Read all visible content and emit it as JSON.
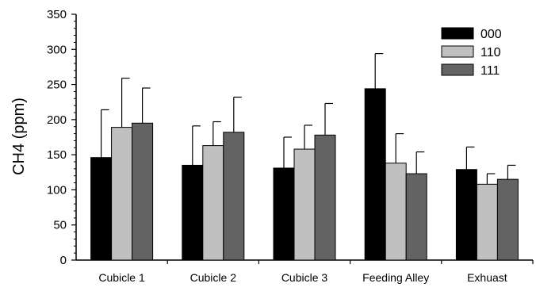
{
  "chart_data": {
    "type": "bar",
    "title": "",
    "xlabel": "",
    "ylabel": "CH4 (ppm)",
    "ylim": [
      0,
      350
    ],
    "yticks": [
      "0",
      "50",
      "100",
      "150",
      "200",
      "250",
      "300",
      "350"
    ],
    "grid": false,
    "legend_position": "top-right",
    "error_bars": "upper",
    "categories": [
      "Cubicle 1",
      "Cubicle 2",
      "Cubicle 3",
      "Feeding Alley",
      "Exhuast"
    ],
    "series": [
      {
        "name": "000",
        "color": "#000000",
        "values": [
          146,
          135,
          131,
          244,
          129
        ],
        "error": [
          68,
          56,
          44,
          50,
          32
        ]
      },
      {
        "name": "110",
        "color": "#c0c0c0",
        "values": [
          189,
          163,
          158,
          138,
          108
        ],
        "error": [
          70,
          34,
          34,
          42,
          15
        ]
      },
      {
        "name": "111",
        "color": "#636363",
        "values": [
          195,
          182,
          178,
          123,
          115
        ],
        "error": [
          50,
          50,
          45,
          31,
          20
        ]
      }
    ]
  }
}
